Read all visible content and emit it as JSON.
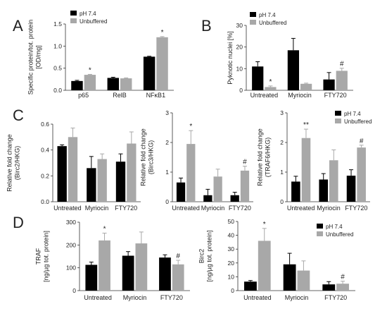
{
  "figure": {
    "series_names": [
      "pH 7.4",
      "Unbuffered"
    ],
    "colors": {
      "pH 7.4": "#000000",
      "Unbuffered": "#a8a8a8"
    }
  },
  "chart_data": [
    {
      "id": "A",
      "letter": "A",
      "type": "bar",
      "categories": [
        "p65",
        "RelB",
        "NFκB1"
      ],
      "series": [
        {
          "name": "pH 7.4",
          "values": [
            0.21,
            0.28,
            0.76
          ],
          "errors": [
            0.015,
            0.015,
            0.01
          ]
        },
        {
          "name": "Unbuffered",
          "values": [
            0.35,
            0.27,
            1.2
          ],
          "errors": [
            0.01,
            0.01,
            0.015
          ]
        }
      ],
      "sig": [
        null,
        "*",
        null,
        null,
        null,
        "*"
      ],
      "ylabel_lines": [
        "Specific protein/tot. protein",
        "[OD/mg]"
      ],
      "ylim": [
        0,
        1.5
      ],
      "yticks": [
        "0.0",
        "0.5",
        "1.0",
        "1.5"
      ],
      "legend": true
    },
    {
      "id": "B",
      "letter": "B",
      "type": "bar",
      "categories": [
        "Untreated",
        "Myriocin",
        "FTY720"
      ],
      "series": [
        {
          "name": "pH 7.4",
          "values": [
            11,
            18.5,
            5
          ],
          "errors": [
            2.2,
            5.5,
            3.2
          ]
        },
        {
          "name": "Unbuffered",
          "values": [
            1.5,
            3,
            9
          ],
          "errors": [
            0.5,
            0.3,
            1.2
          ]
        }
      ],
      "sig": [
        null,
        "*",
        null,
        null,
        null,
        "#"
      ],
      "ylabel_lines": [
        "Pyknotic nuclei [%]"
      ],
      "ylim": [
        0,
        30
      ],
      "yticks": [
        "0",
        "10",
        "20",
        "30"
      ],
      "legend": true
    },
    {
      "id": "C1",
      "letter": "C",
      "type": "bar",
      "categories": [
        "Untreated",
        "Myriocin",
        "FTY720"
      ],
      "series": [
        {
          "name": "pH 7.4",
          "values": [
            0.43,
            0.26,
            0.31
          ],
          "errors": [
            0.01,
            0.09,
            0.06
          ]
        },
        {
          "name": "Unbuffered",
          "values": [
            0.5,
            0.33,
            0.45
          ],
          "errors": [
            0.07,
            0.04,
            0.09
          ]
        }
      ],
      "sig": [
        null,
        null,
        null,
        null,
        null,
        null
      ],
      "ylabel_lines": [
        "Relative fold change",
        "(Birc2/HKG)"
      ],
      "ylim": [
        0,
        0.6
      ],
      "yticks": [
        "0.0",
        "0.2",
        "0.4",
        "0.6"
      ],
      "legend": false
    },
    {
      "id": "C2",
      "letter": "",
      "type": "bar",
      "categories": [
        "Untreated",
        "Myriocin",
        "FTY720"
      ],
      "series": [
        {
          "name": "pH 7.4",
          "values": [
            0.65,
            0.22,
            0.22
          ],
          "errors": [
            0.15,
            0.2,
            0.1
          ]
        },
        {
          "name": "Unbuffered",
          "values": [
            1.95,
            0.85,
            1.05
          ],
          "errors": [
            0.45,
            0.25,
            0.15
          ]
        }
      ],
      "sig": [
        null,
        "*",
        null,
        null,
        null,
        "#"
      ],
      "ylabel_lines": [
        "Relative fold change",
        "(Birc3/HKG)"
      ],
      "ylim": [
        0,
        3
      ],
      "yticks": [
        "0",
        "1",
        "2",
        "3"
      ],
      "legend": false
    },
    {
      "id": "C3",
      "letter": "",
      "type": "bar",
      "categories": [
        "Untreated",
        "Myriocin",
        "FTY720"
      ],
      "series": [
        {
          "name": "pH 7.4",
          "values": [
            0.68,
            0.75,
            0.88
          ],
          "errors": [
            0.18,
            0.2,
            0.2
          ]
        },
        {
          "name": "Unbuffered",
          "values": [
            2.15,
            1.4,
            1.83
          ],
          "errors": [
            0.3,
            0.35,
            0.08
          ]
        }
      ],
      "sig": [
        null,
        "**",
        null,
        null,
        null,
        "#"
      ],
      "ylabel_lines": [
        "Relative fold change",
        "(TRAF6/HKG)"
      ],
      "ylim": [
        0,
        3
      ],
      "yticks": [
        "0",
        "1",
        "2",
        "3"
      ],
      "legend": true
    },
    {
      "id": "D1",
      "letter": "D",
      "type": "bar",
      "categories": [
        "Untreated",
        "Myriocin",
        "FTY720"
      ],
      "series": [
        {
          "name": "pH 7.4",
          "values": [
            113,
            153,
            145
          ],
          "errors": [
            12,
            18,
            12
          ]
        },
        {
          "name": "Unbuffered",
          "values": [
            220,
            207,
            115
          ],
          "errors": [
            32,
            50,
            18
          ]
        }
      ],
      "sig": [
        null,
        "*",
        null,
        null,
        null,
        "#"
      ],
      "ylabel_lines": [
        "TRAF",
        "[ng/µg tot. protein]"
      ],
      "ylim": [
        0,
        300
      ],
      "yticks": [
        "0",
        "100",
        "200",
        "300"
      ],
      "legend": false
    },
    {
      "id": "D2",
      "letter": "",
      "type": "bar",
      "categories": [
        "Untreated",
        "Myriocin",
        "FTY720"
      ],
      "series": [
        {
          "name": "pH 7.4",
          "values": [
            6.5,
            19,
            4.5
          ],
          "errors": [
            0.8,
            8,
            2
          ]
        },
        {
          "name": "Unbuffered",
          "values": [
            36,
            14.5,
            5
          ],
          "errors": [
            9,
            7,
            1.8
          ]
        }
      ],
      "sig": [
        null,
        "*",
        null,
        null,
        null,
        "#"
      ],
      "ylabel_lines": [
        "Birc2",
        "[ng/µg tot. protein]"
      ],
      "ylim": [
        0,
        50
      ],
      "yticks": [
        "0",
        "10",
        "20",
        "30",
        "40",
        "50"
      ],
      "legend": true
    }
  ]
}
